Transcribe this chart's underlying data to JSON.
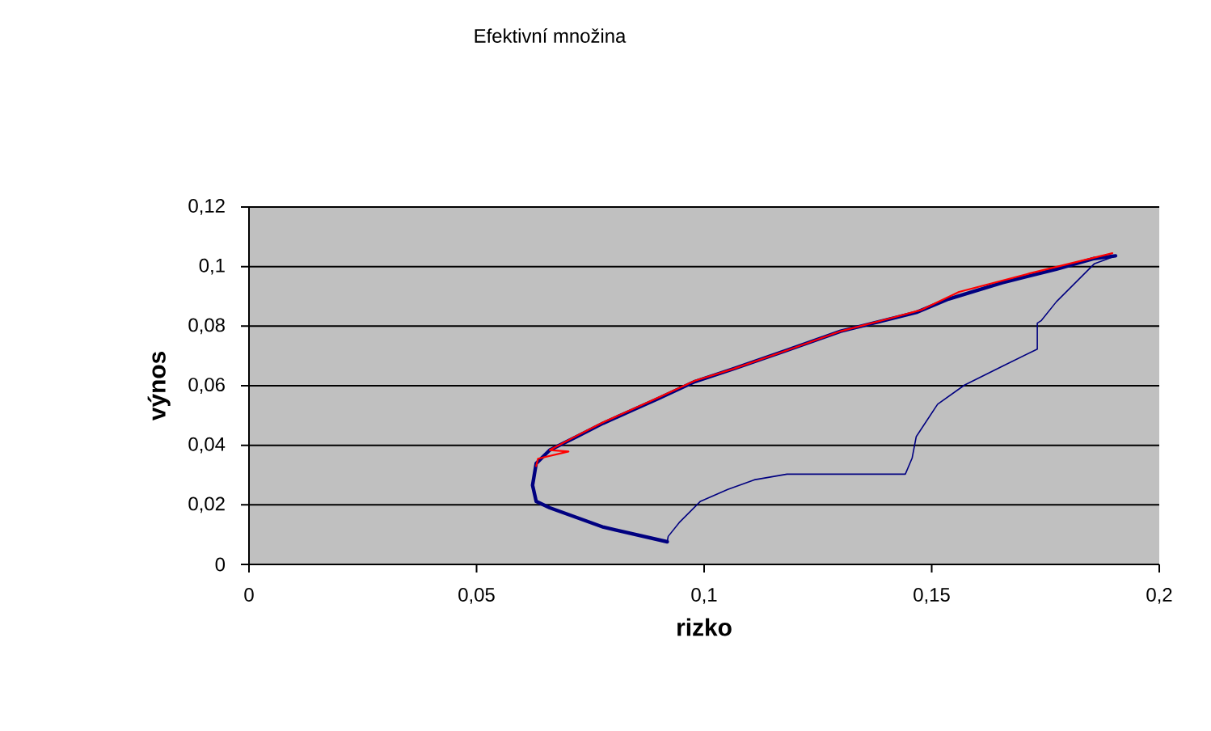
{
  "chart_data": {
    "type": "line",
    "title": "Efektivní množina",
    "xlabel": "rizko",
    "ylabel": "výnos",
    "xlim": [
      0,
      0.2
    ],
    "ylim": [
      0,
      0.12
    ],
    "xticks": [
      0,
      {
        "value": 0.05,
        "label": "0,05"
      },
      {
        "value": 0.1,
        "label": "0,1"
      },
      {
        "value": 0.15,
        "label": "0,15"
      },
      {
        "value": 0.2,
        "label": "0,2"
      }
    ],
    "yticks": [
      0,
      {
        "value": 0.02,
        "label": "0,02"
      },
      {
        "value": 0.04,
        "label": "0,04"
      },
      {
        "value": 0.06,
        "label": "0,06"
      },
      {
        "value": 0.08,
        "label": "0,08"
      },
      {
        "value": 0.1,
        "label": "0,1"
      },
      {
        "value": 0.12,
        "label": "0,12"
      }
    ],
    "grid": "y",
    "marker": "none",
    "line_style": "solid",
    "series": [
      {
        "color": "#000080",
        "x": [
          0.0919,
          0.0779,
          0.0661,
          0.0631,
          0.0623,
          0.0631,
          0.0661,
          0.072,
          0.0778,
          0.0898,
          0.098,
          0.1063,
          0.1182,
          0.13,
          0.1418,
          0.1466,
          0.1537,
          0.1655,
          0.1774,
          0.1857,
          0.1904
        ],
        "values": [
          0.0076,
          0.0125,
          0.019,
          0.0212,
          0.0266,
          0.0339,
          0.0384,
          0.0429,
          0.0474,
          0.0556,
          0.0614,
          0.0656,
          0.0719,
          0.0783,
          0.0828,
          0.0846,
          0.0891,
          0.0946,
          0.0991,
          0.1027,
          0.1036
        ]
      },
      {
        "color": "#ff0000",
        "x": [
          0.0631,
          0.0635,
          0.0702,
          0.0661,
          0.072,
          0.0778,
          0.0898,
          0.098,
          0.1063,
          0.1182,
          0.13,
          0.1418,
          0.1478,
          0.156,
          0.1715,
          0.1897
        ],
        "values": [
          0.033,
          0.0355,
          0.0379,
          0.0384,
          0.0432,
          0.0477,
          0.0559,
          0.0617,
          0.0656,
          0.0719,
          0.0783,
          0.083,
          0.0855,
          0.0915,
          0.0977,
          0.1045
        ]
      },
      {
        "color": "#000080",
        "x": [
          0.1904,
          0.1857,
          0.1774,
          0.1741,
          0.1732,
          0.1732,
          0.1655,
          0.1572,
          0.1513,
          0.1466,
          0.1457,
          0.1442,
          0.1182,
          0.111,
          0.1052,
          0.0992,
          0.0945,
          0.0921,
          0.0919
        ],
        "values": [
          0.1036,
          0.1009,
          0.0882,
          0.0819,
          0.081,
          0.0723,
          0.0665,
          0.0602,
          0.0538,
          0.0429,
          0.0357,
          0.0303,
          0.0303,
          0.0284,
          0.0252,
          0.0212,
          0.014,
          0.0094,
          0.0076
        ]
      }
    ]
  }
}
